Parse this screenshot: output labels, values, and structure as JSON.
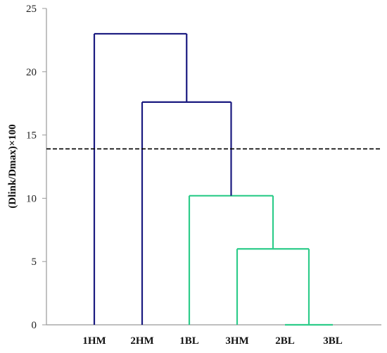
{
  "chart_data": {
    "type": "dendrogram",
    "title": "",
    "xlabel": "",
    "ylabel": "(Dlink/Dmax)×100",
    "ylim": [
      0,
      25
    ],
    "yticks": [
      0,
      5,
      10,
      15,
      20,
      25
    ],
    "grid": false,
    "leaves": [
      "1HM",
      "2HM",
      "1BL",
      "3HM",
      "2BL",
      "3BL"
    ],
    "merges": [
      {
        "left": "2BL",
        "right": "3BL",
        "height": 0,
        "cluster": "green"
      },
      {
        "left": "3HM",
        "right": "2BL+3BL",
        "height": 6.0,
        "cluster": "green"
      },
      {
        "left": "1BL",
        "right": "3HM+2BL+3BL",
        "height": 10.2,
        "cluster": "green"
      },
      {
        "left": "2HM",
        "right": "1BL+3HM+2BL+3BL",
        "height": 17.6,
        "cluster": "blue"
      },
      {
        "left": "1HM",
        "right": "rest",
        "height": 23.0,
        "cluster": "blue"
      }
    ],
    "cut_line": {
      "y": 13.9,
      "style": "dashed"
    },
    "colors": {
      "blue": "#1a1a80",
      "green": "#2ecc8a",
      "cut": "#000000",
      "axis": "#999999"
    }
  }
}
